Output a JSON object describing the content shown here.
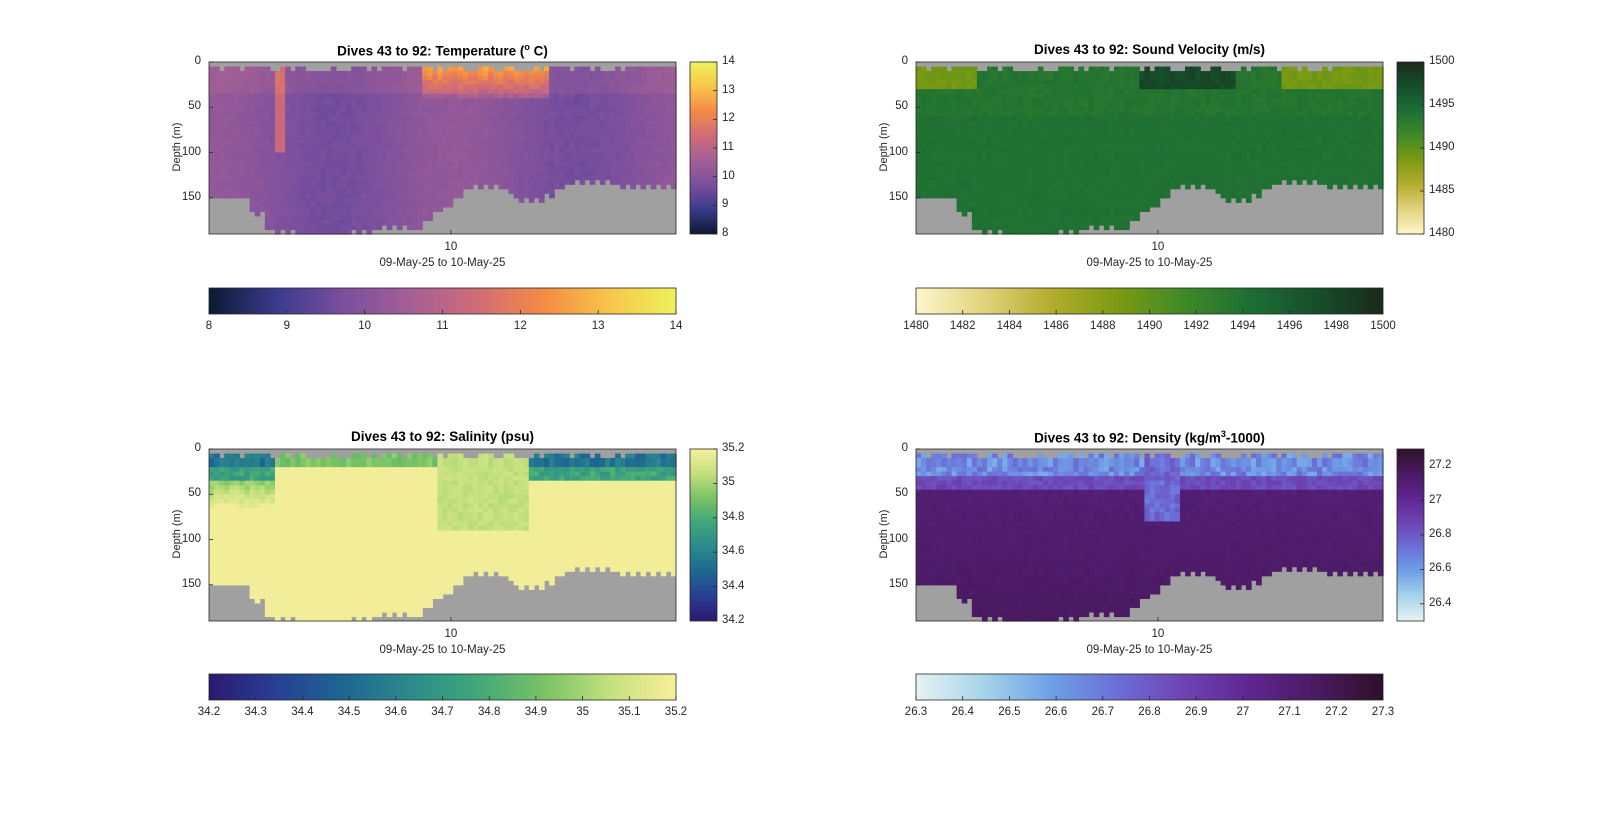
{
  "colors": {
    "land": "#a0a0a0",
    "axes": "#262626"
  },
  "chart_data": [
    {
      "type": "heatmap",
      "id": "temperature",
      "title_prefix": "Dives 43 to 92: Temperature (",
      "title_sup": "o",
      "title_suffix": " C)",
      "ylabel": "Depth (m)",
      "xlabel": "09-May-25 to 10-May-25",
      "x_ticks": [
        "10"
      ],
      "y_ticks": [
        0,
        50,
        100,
        150
      ],
      "ylim": [
        0,
        190
      ],
      "colorbar": {
        "min": 8,
        "max": 14,
        "ticks": [
          8,
          9,
          10,
          11,
          12,
          13,
          14
        ],
        "tick_labels": [
          "8",
          "9",
          "10",
          "11",
          "12",
          "13",
          "14"
        ],
        "colors": [
          "#0a1a33",
          "#3a3a8c",
          "#7a4f9e",
          "#a35f95",
          "#d06b78",
          "#f48a45",
          "#f7c54a",
          "#eef25a"
        ]
      }
    },
    {
      "type": "heatmap",
      "id": "sound_velocity",
      "title_prefix": "Dives 43 to 92: Sound Velocity (m/s)",
      "title_sup": "",
      "title_suffix": "",
      "ylabel": "Depth (m)",
      "xlabel": "09-May-25 to 10-May-25",
      "x_ticks": [
        "10"
      ],
      "y_ticks": [
        0,
        50,
        100,
        150
      ],
      "ylim": [
        0,
        190
      ],
      "colorbar": {
        "min": 1480,
        "max": 1500,
        "ticks": [
          1480,
          1485,
          1490,
          1495,
          1500
        ],
        "tick_labels": [
          "1480",
          "1485",
          "1490",
          "1495",
          "1500"
        ],
        "h_ticks": [
          1480,
          1482,
          1484,
          1486,
          1488,
          1490,
          1492,
          1494,
          1496,
          1498,
          1500
        ],
        "h_tick_labels": [
          "1480",
          "1482",
          "1484",
          "1486",
          "1488",
          "1490",
          "1492",
          "1494",
          "1496",
          "1498",
          "1500"
        ],
        "colors": [
          "#fdf6cc",
          "#e3d37e",
          "#b5ad2e",
          "#7d9a12",
          "#3f8a27",
          "#1d6e34",
          "#164f2b",
          "#1a2a1a"
        ]
      }
    },
    {
      "type": "heatmap",
      "id": "salinity",
      "title_prefix": "Dives 43 to 92: Salinity (psu)",
      "title_sup": "",
      "title_suffix": "",
      "ylabel": "Depth (m)",
      "xlabel": "09-May-25 to 10-May-25",
      "x_ticks": [
        "10"
      ],
      "y_ticks": [
        0,
        50,
        100,
        150
      ],
      "ylim": [
        0,
        190
      ],
      "colorbar": {
        "min": 34.2,
        "max": 35.2,
        "ticks": [
          34.2,
          34.4,
          34.6,
          34.8,
          35,
          35.2
        ],
        "tick_labels": [
          "34.2",
          "34.4",
          "34.6",
          "34.8",
          "35",
          "35.2"
        ],
        "h_ticks": [
          34.2,
          34.3,
          34.4,
          34.5,
          34.6,
          34.7,
          34.8,
          34.9,
          35,
          35.1,
          35.2
        ],
        "h_tick_labels": [
          "34.2",
          "34.3",
          "34.4",
          "34.5",
          "34.6",
          "34.7",
          "34.8",
          "34.9",
          "35",
          "35.1",
          "35.2"
        ],
        "colors": [
          "#2a1a6e",
          "#283f94",
          "#1f6592",
          "#2a8a8c",
          "#3fa77a",
          "#78c265",
          "#c3e07e",
          "#f9ef9c"
        ]
      }
    },
    {
      "type": "heatmap",
      "id": "density",
      "title_prefix": "Dives 43 to 92: Density (kg/m",
      "title_sup": "3",
      "title_suffix": "-1000)",
      "ylabel": "Depth (m)",
      "xlabel": "09-May-25 to 10-May-25",
      "x_ticks": [
        "10"
      ],
      "y_ticks": [
        0,
        50,
        100,
        150
      ],
      "ylim": [
        0,
        190
      ],
      "colorbar": {
        "min": 26.3,
        "max": 27.3,
        "ticks": [
          26.4,
          26.6,
          26.8,
          27,
          27.2
        ],
        "tick_labels": [
          "26.4",
          "26.6",
          "26.8",
          "27",
          "27.2"
        ],
        "h_ticks": [
          26.3,
          26.4,
          26.5,
          26.6,
          26.7,
          26.8,
          26.9,
          27,
          27.1,
          27.2,
          27.3
        ],
        "h_tick_labels": [
          "26.3",
          "26.4",
          "26.5",
          "26.6",
          "26.7",
          "26.8",
          "26.9",
          "27",
          "27.1",
          "27.2",
          "27.3"
        ],
        "colors": [
          "#e6f3f2",
          "#a8d4ea",
          "#6fa1e6",
          "#6c6fd8",
          "#6e44b4",
          "#5f2690",
          "#4b1a62",
          "#2e0f2a"
        ]
      }
    }
  ]
}
